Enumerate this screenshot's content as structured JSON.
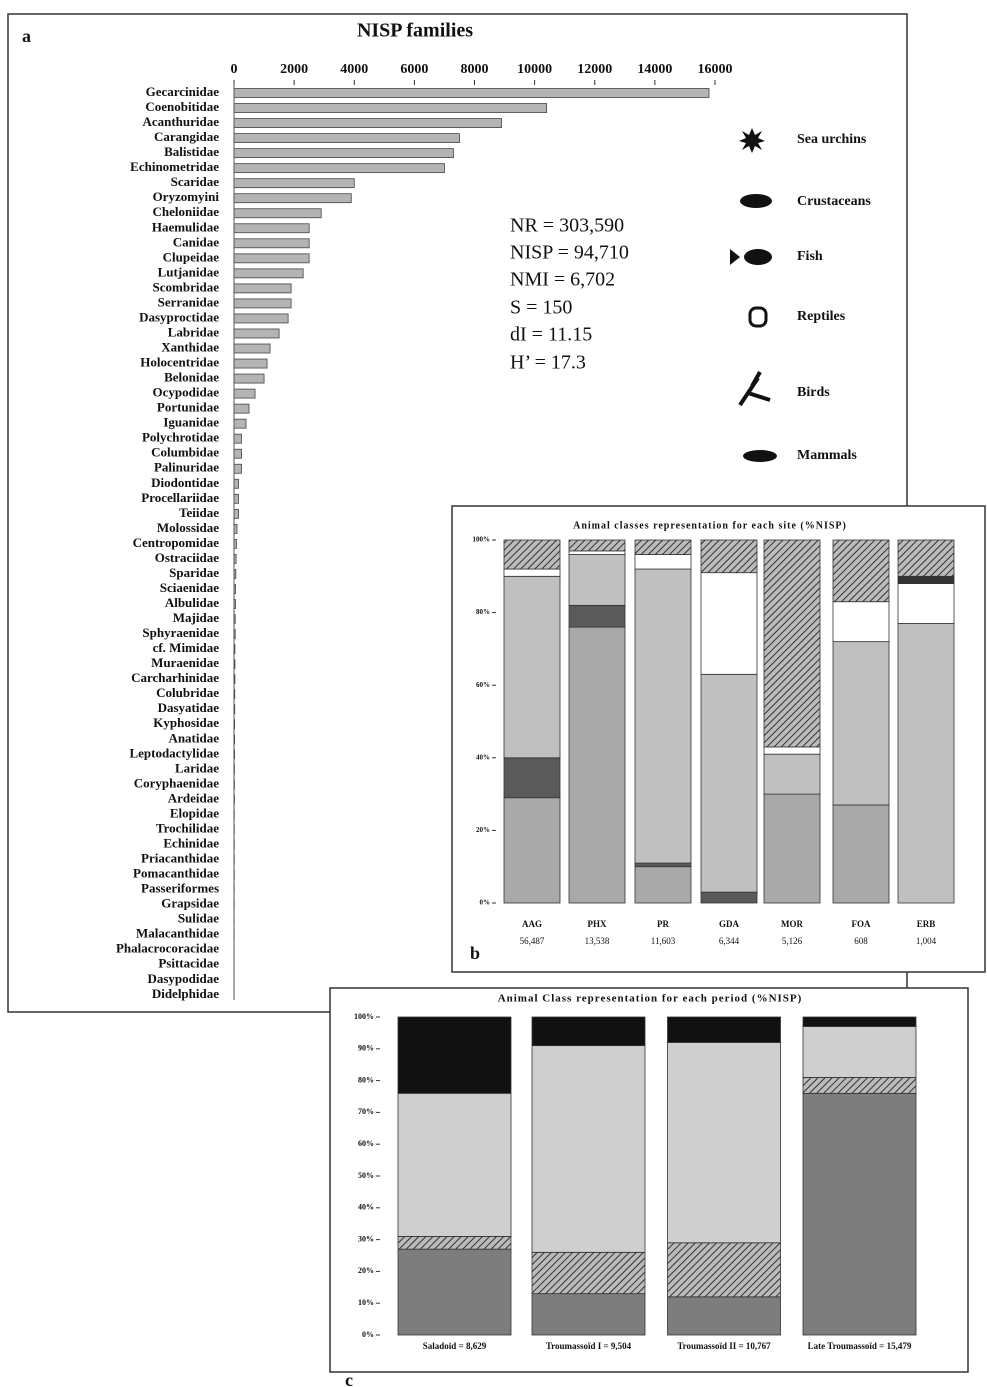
{
  "chart_data": [
    {
      "type": "bar",
      "orientation": "horizontal",
      "panel": "a",
      "title": "NISP families",
      "categories": [
        "Gecarcinidae",
        "Coenobitidae",
        "Acanthuridae",
        "Carangidae",
        "Balistidae",
        "Echinometridae",
        "Scaridae",
        "Oryzomyini",
        "Cheloniidae",
        "Haemulidae",
        "Canidae",
        "Clupeidae",
        "Lutjanidae",
        "Scombridae",
        "Serranidae",
        "Dasyproctidae",
        "Labridae",
        "Xanthidae",
        "Holocentridae",
        "Belonidae",
        "Ocypodidae",
        "Portunidae",
        "Iguanidae",
        "Polychrotidae",
        "Columbidae",
        "Palinuridae",
        "Diodontidae",
        "Procellariidae",
        "Teiidae",
        "Molossidae",
        "Centropomidae",
        "Ostraciidae",
        "Sparidae",
        "Sciaenidae",
        "Albulidae",
        "Majidae",
        "Sphyraenidae",
        "cf. Mimidae",
        "Muraenidae",
        "Carcharhinidae",
        "Colubridae",
        "Dasyatidae",
        "Kyphosidae",
        "Anatidae",
        "Leptodactylidae",
        "Laridae",
        "Coryphaenidae",
        "Ardeidae",
        "Elopidae",
        "Trochilidae",
        "Echinidae",
        "Priacanthidae",
        "Pomacanthidae",
        "Passeriformes",
        "Grapsidae",
        "Sulidae",
        "Malacanthidae",
        "Phalacrocoracidae",
        "Psittacidae",
        "Dasypodidae",
        "Didelphidae"
      ],
      "values": [
        15800,
        10400,
        8900,
        7500,
        7300,
        7000,
        4000,
        3900,
        2900,
        2500,
        2500,
        2500,
        2300,
        1900,
        1900,
        1800,
        1500,
        1200,
        1100,
        1000,
        700,
        500,
        400,
        250,
        250,
        250,
        150,
        150,
        150,
        100,
        80,
        70,
        60,
        50,
        50,
        40,
        40,
        30,
        30,
        30,
        25,
        25,
        20,
        20,
        20,
        15,
        15,
        15,
        10,
        10,
        10,
        10,
        10,
        8,
        8,
        6,
        6,
        5,
        5,
        5,
        5
      ],
      "color": "#b4b4b4",
      "xlim": [
        0,
        16000
      ],
      "xticks": [
        0,
        2000,
        4000,
        6000,
        8000,
        10000,
        12000,
        14000,
        16000
      ],
      "annotations": [
        "NR = 303,590",
        "NISP = 94,710",
        "NMI = 6,702",
        "S = 150",
        "dI = 11.15",
        "H’ = 17.3"
      ],
      "legend_entries": [
        "Sea urchins",
        "Crustaceans",
        "Fish",
        "Reptiles",
        "Birds",
        "Mammals"
      ]
    },
    {
      "type": "stacked_bar",
      "panel": "b",
      "title": "Animal classes representation for each site (%NISP)",
      "categories": [
        "AAG",
        "PHX",
        "PR",
        "GDA",
        "MOR",
        "FOA",
        "ERB"
      ],
      "sample_sizes": [
        "56,487",
        "13,538",
        "11,603",
        "6,344",
        "5,126",
        "608",
        "1,004"
      ],
      "series": [
        {
          "color": "#a9a9a9",
          "values": [
            29,
            76,
            10,
            0,
            30,
            27,
            0
          ]
        },
        {
          "color": "#5a5a5a",
          "values": [
            11,
            6,
            1,
            3,
            0,
            0,
            0
          ]
        },
        {
          "color": "#c0c0c0",
          "values": [
            50,
            14,
            81,
            60,
            11,
            45,
            77
          ]
        },
        {
          "color": "#ffffff",
          "values": [
            2,
            1,
            4,
            28,
            2,
            11,
            11
          ]
        },
        {
          "color": "#333333",
          "values": [
            0,
            0,
            0,
            0,
            0,
            0,
            2
          ]
        },
        {
          "color": "#8c8c8c",
          "hatch": true,
          "values": [
            8,
            3,
            4,
            9,
            57,
            17,
            10
          ]
        }
      ],
      "ylim": [
        0,
        100
      ],
      "yticks": [
        {
          "value": 0,
          "label": "0%"
        },
        {
          "value": 20,
          "label": "20%"
        },
        {
          "value": 40,
          "label": "40%"
        },
        {
          "value": 60,
          "label": "60%"
        },
        {
          "value": 80,
          "label": "80%"
        },
        {
          "value": 100,
          "label": "100%"
        }
      ]
    },
    {
      "type": "stacked_bar",
      "panel": "c",
      "title": "Animal Class representation for each period (%NISP)",
      "categories": [
        "Saladoid = 8,629",
        "Troumassoïd I = 9,504",
        "Troumassoïd II = 10,767",
        "Late Troumassoïd = 15,479"
      ],
      "series": [
        {
          "color": "#7d7d7d",
          "values": [
            27,
            13,
            12,
            76
          ]
        },
        {
          "color": "#9a9a9a",
          "hatch": true,
          "values": [
            4,
            13,
            17,
            5
          ]
        },
        {
          "color": "#cfcfcf",
          "values": [
            45,
            65,
            63,
            16
          ]
        },
        {
          "color": "#111111",
          "values": [
            24,
            9,
            8,
            3
          ]
        }
      ],
      "ylim": [
        0,
        100
      ],
      "yticks": [
        {
          "value": 0,
          "label": "0%"
        },
        {
          "value": 10,
          "label": "10%"
        },
        {
          "value": 20,
          "label": "20%"
        },
        {
          "value": 30,
          "label": "30%"
        },
        {
          "value": 40,
          "label": "40%"
        },
        {
          "value": 50,
          "label": "50%"
        },
        {
          "value": 60,
          "label": "60%"
        },
        {
          "value": 70,
          "label": "70%"
        },
        {
          "value": 80,
          "label": "80%"
        },
        {
          "value": 90,
          "label": "90%"
        },
        {
          "value": 100,
          "label": "100%"
        }
      ]
    }
  ]
}
